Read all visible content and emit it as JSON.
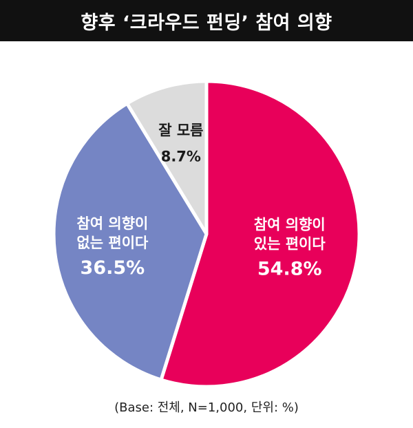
{
  "title": "향후 ‘크라우드 펀딩’ 참여 의향",
  "footnote": "(Base: 전체, N=1,000, 단위: %)",
  "chart_data": {
    "type": "pie",
    "title": "향후 ‘크라우드 펀딩’ 참여 의향",
    "slices": [
      {
        "label": [
          "참여 의향이",
          "있는 편이다"
        ],
        "value": 54.8,
        "value_label": "54.8%",
        "color": "#e8005a",
        "text_color": "#ffffff"
      },
      {
        "label": [
          "참여 의향이",
          "없는 편이다"
        ],
        "value": 36.5,
        "value_label": "36.5%",
        "color": "#7585c4",
        "text_color": "#ffffff"
      },
      {
        "label": [
          "잘 모름"
        ],
        "value": 8.7,
        "value_label": "8.7%",
        "color": "#dcdcdc",
        "text_color": "#1a1a1a"
      }
    ],
    "start_angle": "12 o'clock",
    "direction": "clockwise"
  }
}
